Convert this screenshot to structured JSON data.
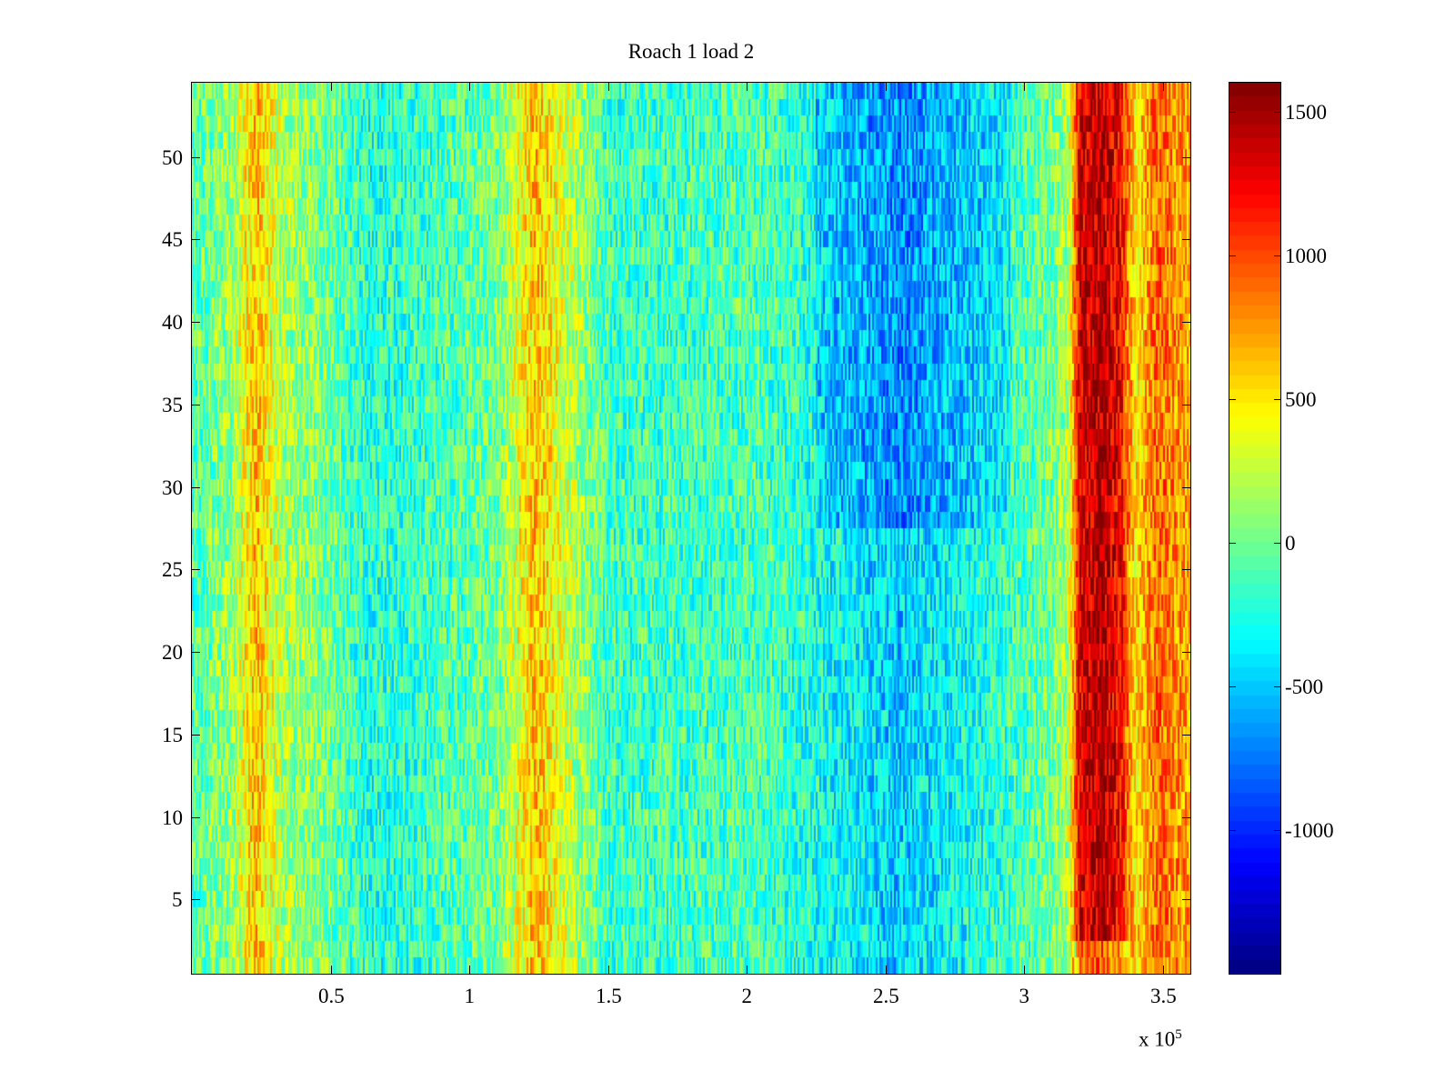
{
  "chart_data": {
    "type": "heatmap",
    "title": "Roach 1 load 2",
    "xlabel": "",
    "ylabel": "",
    "x_multiplier_label": "x 10",
    "x_multiplier_exponent": "5",
    "xlim": [
      0,
      360000
    ],
    "ylim": [
      0.5,
      54.5
    ],
    "rows": 54,
    "xticks": [
      {
        "value": 50000,
        "label": "0.5"
      },
      {
        "value": 100000,
        "label": "1"
      },
      {
        "value": 150000,
        "label": "1.5"
      },
      {
        "value": 200000,
        "label": "2"
      },
      {
        "value": 250000,
        "label": "2.5"
      },
      {
        "value": 300000,
        "label": "3"
      },
      {
        "value": 350000,
        "label": "3.5"
      }
    ],
    "yticks": [
      {
        "value": 5,
        "label": "5"
      },
      {
        "value": 10,
        "label": "10"
      },
      {
        "value": 15,
        "label": "15"
      },
      {
        "value": 20,
        "label": "20"
      },
      {
        "value": 25,
        "label": "25"
      },
      {
        "value": 30,
        "label": "30"
      },
      {
        "value": 35,
        "label": "35"
      },
      {
        "value": 40,
        "label": "40"
      },
      {
        "value": 45,
        "label": "45"
      },
      {
        "value": 50,
        "label": "50"
      }
    ],
    "colormap": "jet",
    "clim": [
      -1500,
      1600
    ],
    "colorbar_ticks": [
      {
        "value": 1500,
        "label": "1500"
      },
      {
        "value": 1000,
        "label": "1000"
      },
      {
        "value": 500,
        "label": "500"
      },
      {
        "value": 0,
        "label": "0"
      },
      {
        "value": -500,
        "label": "-500"
      },
      {
        "value": -1000,
        "label": "-1000"
      }
    ],
    "profile_description": "approximate mean intensity along x, in data units",
    "x_profile": [
      {
        "x": 0,
        "v": -100
      },
      {
        "x": 15000,
        "v": 150
      },
      {
        "x": 23000,
        "v": 650
      },
      {
        "x": 32000,
        "v": 200
      },
      {
        "x": 50000,
        "v": 0
      },
      {
        "x": 65000,
        "v": -250
      },
      {
        "x": 85000,
        "v": -150
      },
      {
        "x": 110000,
        "v": 0
      },
      {
        "x": 124000,
        "v": 650
      },
      {
        "x": 134000,
        "v": 300
      },
      {
        "x": 150000,
        "v": -150
      },
      {
        "x": 175000,
        "v": -150
      },
      {
        "x": 205000,
        "v": -100
      },
      {
        "x": 230000,
        "v": -300
      },
      {
        "x": 255000,
        "v": -500
      },
      {
        "x": 285000,
        "v": -250
      },
      {
        "x": 310000,
        "v": 0
      },
      {
        "x": 316000,
        "v": 200
      },
      {
        "x": 320000,
        "v": 1300
      },
      {
        "x": 328000,
        "v": 1450
      },
      {
        "x": 335000,
        "v": 1200
      },
      {
        "x": 340000,
        "v": 500
      },
      {
        "x": 348000,
        "v": 900
      },
      {
        "x": 360000,
        "v": 700
      }
    ]
  }
}
